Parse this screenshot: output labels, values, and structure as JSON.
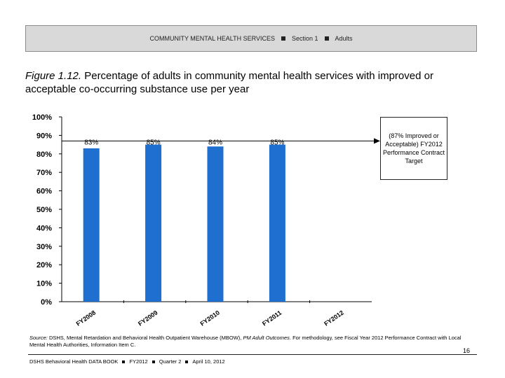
{
  "header": {
    "title": "COMMUNITY MENTAL HEALTH SERVICES",
    "section": "Section 1",
    "topic": "Adults"
  },
  "figure": {
    "label": "Figure 1.12.",
    "title": "Percentage of adults in community mental health services with improved or acceptable co-occurring substance use per year"
  },
  "target_box": {
    "text": "(87% Improved or Acceptable) FY2012 Performance Contract Target"
  },
  "chart_data": {
    "type": "bar",
    "categories": [
      "FY2008",
      "FY2009",
      "FY2010",
      "FY2011",
      "FY2012"
    ],
    "values": [
      83,
      85,
      84,
      85,
      null
    ],
    "data_labels": [
      "83%",
      "85%",
      "84%",
      "85%",
      ""
    ],
    "yticks": [
      "0%",
      "10%",
      "20%",
      "30%",
      "40%",
      "50%",
      "60%",
      "70%",
      "80%",
      "90%",
      "100%"
    ],
    "ylim": [
      0,
      100
    ],
    "target": 87,
    "bar_color": "#1f6fd1",
    "grid": false,
    "legend": "none"
  },
  "source": {
    "label": "Source:",
    "text": "DSHS, Mental Retardation and Behavioral Health Outpatient Warehouse (MBOW),",
    "report": "PM Adult Outcomes",
    "text2": ". For methodology, see Fiscal Year 2012 Performance Contract with Local Mental Health Authorities, Information Item C."
  },
  "page_number": "16",
  "footer": {
    "book": "DSHS Behavioral Health DATA BOOK",
    "year": "FY2012",
    "quarter": "Quarter 2",
    "date": "April 10, 2012"
  }
}
